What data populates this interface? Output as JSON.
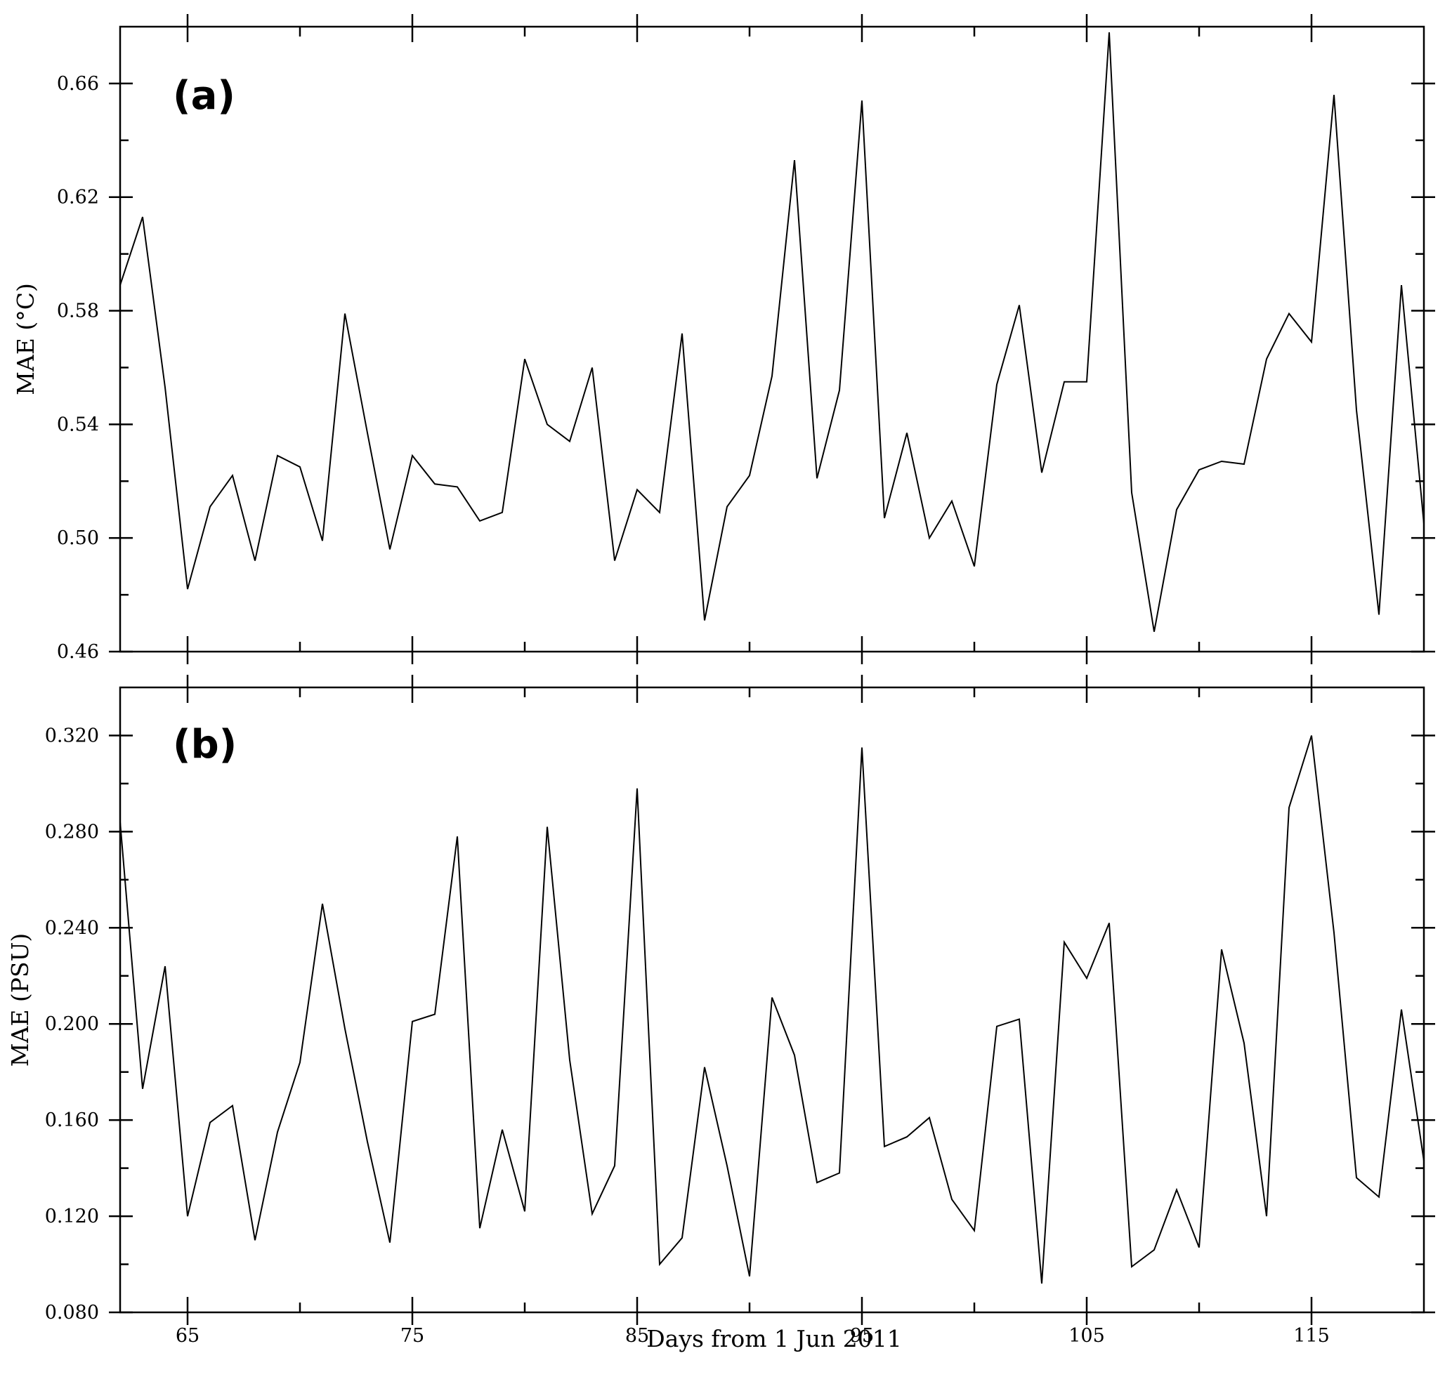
{
  "figure": {
    "xlabel": "Days from 1 Jun 2011"
  },
  "chart_data": [
    {
      "type": "line",
      "panel_label": "(a)",
      "xlabel": "Days from 1 Jun 2011",
      "ylabel": "MAE (°C)",
      "xlim": [
        62,
        120
      ],
      "ylim": [
        0.46,
        0.68
      ],
      "x_ticks": [
        65,
        75,
        85,
        95,
        105,
        115
      ],
      "y_ticks": [
        0.46,
        0.5,
        0.54,
        0.58,
        0.62,
        0.66
      ],
      "y_tick_labels": [
        "0.46",
        "0.50",
        "0.54",
        "0.58",
        "0.62",
        "0.66"
      ],
      "grid": false,
      "series": [
        {
          "x": [
            62,
            63,
            64,
            65,
            66,
            67,
            68,
            69,
            70,
            71,
            72,
            73,
            74,
            75,
            76,
            77,
            78,
            79,
            80,
            81,
            82,
            83,
            84,
            85,
            86,
            87,
            88,
            89,
            90,
            91,
            92,
            93,
            94,
            95,
            96,
            97,
            98,
            99,
            100,
            101,
            102,
            103,
            104,
            105,
            106,
            107,
            108,
            109,
            110,
            111,
            112,
            113,
            114,
            115,
            116,
            117,
            118,
            119,
            120
          ],
          "y": [
            0.589,
            0.613,
            0.553,
            0.482,
            0.511,
            0.522,
            0.492,
            0.529,
            0.525,
            0.499,
            0.579,
            0.537,
            0.496,
            0.529,
            0.519,
            0.518,
            0.506,
            0.509,
            0.563,
            0.54,
            0.534,
            0.56,
            0.492,
            0.517,
            0.509,
            0.572,
            0.471,
            0.511,
            0.522,
            0.557,
            0.633,
            0.521,
            0.552,
            0.654,
            0.507,
            0.537,
            0.5,
            0.513,
            0.49,
            0.554,
            0.582,
            0.523,
            0.555,
            0.555,
            0.678,
            0.516,
            0.467,
            0.51,
            0.524,
            0.527,
            0.526,
            0.563,
            0.579,
            0.569,
            0.656,
            0.545,
            0.473,
            0.589,
            0.505
          ]
        }
      ]
    },
    {
      "type": "line",
      "panel_label": "(b)",
      "xlabel": "Days from 1 Jun 2011",
      "ylabel": "MAE (PSU)",
      "xlim": [
        62,
        120
      ],
      "ylim": [
        0.08,
        0.34
      ],
      "x_ticks": [
        65,
        75,
        85,
        95,
        105,
        115
      ],
      "y_ticks": [
        0.08,
        0.12,
        0.16,
        0.2,
        0.24,
        0.28,
        0.32
      ],
      "y_tick_labels": [
        "0.080",
        "0.120",
        "0.160",
        "0.200",
        "0.240",
        "0.280",
        "0.320"
      ],
      "grid": false,
      "series": [
        {
          "x": [
            62,
            63,
            64,
            65,
            66,
            67,
            68,
            69,
            70,
            71,
            72,
            73,
            74,
            75,
            76,
            77,
            78,
            79,
            80,
            81,
            82,
            83,
            84,
            85,
            86,
            87,
            88,
            89,
            90,
            91,
            92,
            93,
            94,
            95,
            96,
            97,
            98,
            99,
            100,
            101,
            102,
            103,
            104,
            105,
            106,
            107,
            108,
            109,
            110,
            111,
            112,
            113,
            114,
            115,
            116,
            117,
            118,
            119,
            120
          ],
          "y": [
            0.284,
            0.173,
            0.224,
            0.12,
            0.159,
            0.166,
            0.11,
            0.155,
            0.184,
            0.25,
            0.198,
            0.151,
            0.109,
            0.201,
            0.204,
            0.278,
            0.115,
            0.156,
            0.122,
            0.282,
            0.185,
            0.121,
            0.141,
            0.298,
            0.1,
            0.111,
            0.182,
            0.141,
            0.095,
            0.211,
            0.187,
            0.134,
            0.138,
            0.315,
            0.149,
            0.153,
            0.161,
            0.127,
            0.114,
            0.199,
            0.202,
            0.092,
            0.234,
            0.219,
            0.242,
            0.099,
            0.106,
            0.131,
            0.107,
            0.231,
            0.192,
            0.12,
            0.29,
            0.32,
            0.238,
            0.136,
            0.128,
            0.206,
            0.143
          ]
        }
      ]
    }
  ]
}
